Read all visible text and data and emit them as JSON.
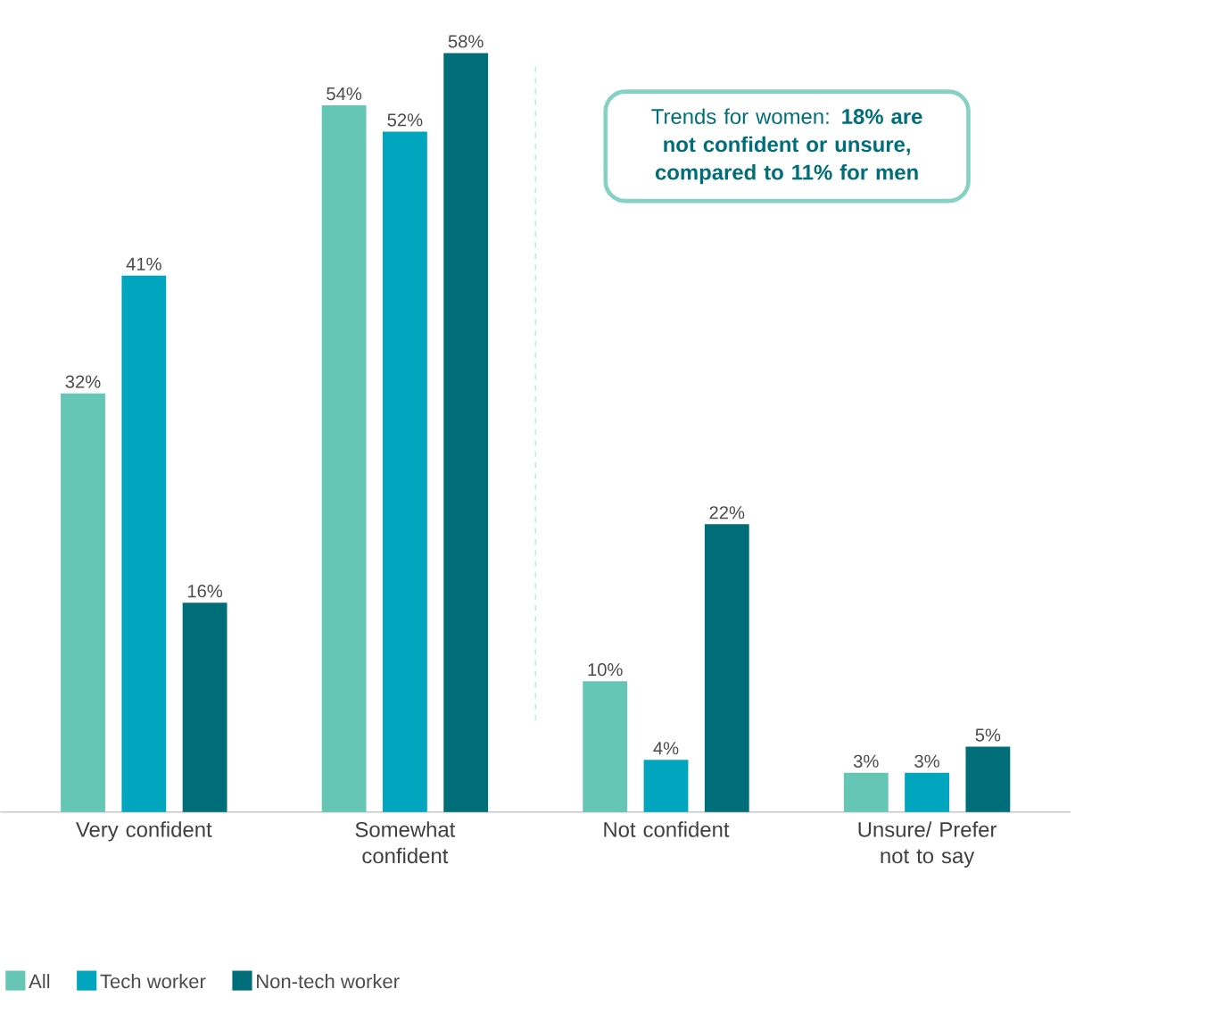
{
  "chart_data": {
    "type": "bar",
    "categories": [
      "Very confident",
      "Somewhat confident",
      "Not confident",
      "Unsure/ Prefer not to say"
    ],
    "series": [
      {
        "name": "All",
        "color": "#66c6b5",
        "values": [
          32,
          54,
          10,
          3
        ],
        "value_labels": [
          "32%",
          "54%",
          "10%",
          "3%"
        ]
      },
      {
        "name": "Tech worker",
        "color": "#00a6be",
        "values": [
          41,
          52,
          4,
          3
        ],
        "value_labels": [
          "41%",
          "52%",
          "4%",
          "3%"
        ]
      },
      {
        "name": "Non-tech worker",
        "color": "#006e78",
        "values": [
          16,
          58,
          22,
          5
        ],
        "value_labels": [
          "16%",
          "58%",
          "22%",
          "5%"
        ]
      }
    ],
    "annotations": [
      "Trends for women: **18% are not confident or unsure, compared to 11% for men**"
    ],
    "legend": "bottom left"
  }
}
